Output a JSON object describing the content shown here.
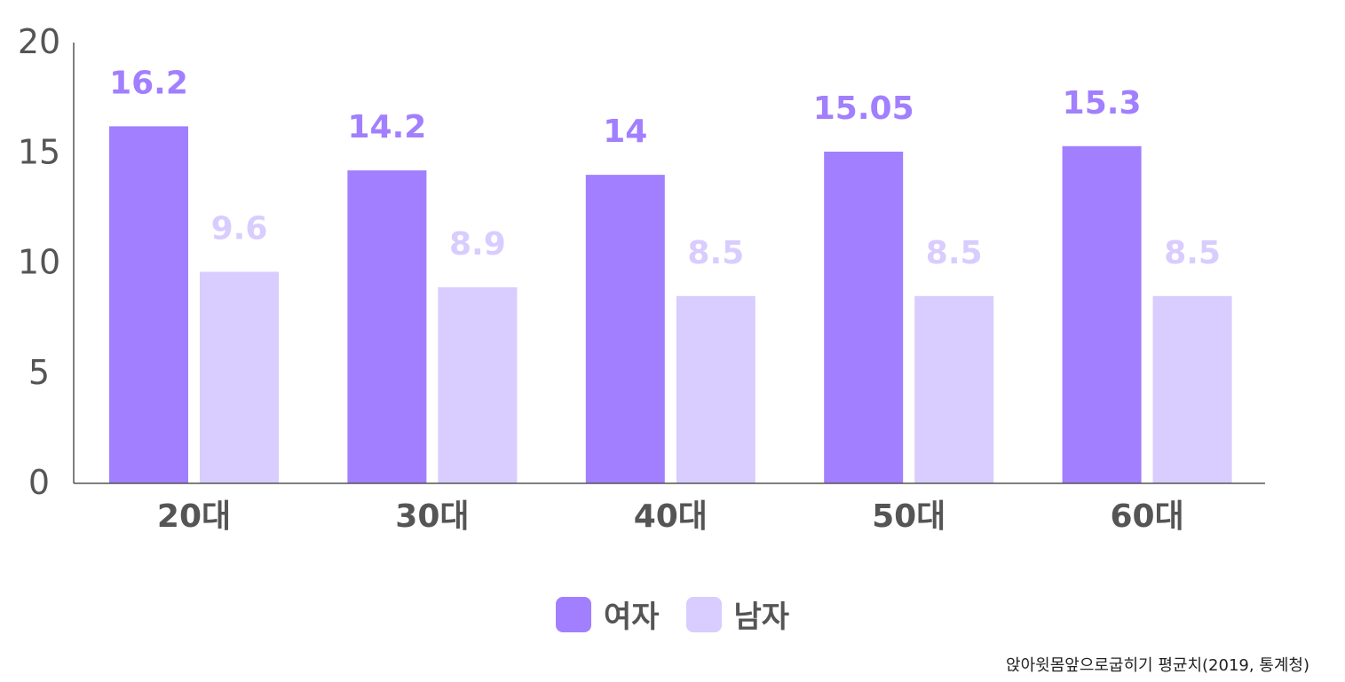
{
  "chart_data": {
    "type": "bar",
    "categories": [
      "20대",
      "30대",
      "40대",
      "50대",
      "60대"
    ],
    "series": [
      {
        "name": "여자",
        "values": [
          16.2,
          14.2,
          14,
          15.05,
          15.3
        ],
        "color": "#a17ffe",
        "label_color": "#a17ffe"
      },
      {
        "name": "남자",
        "values": [
          9.6,
          8.9,
          8.5,
          8.5,
          8.5
        ],
        "color": "#d8cdfe",
        "label_color": "#d8cdfe"
      }
    ],
    "ylim": [
      0,
      20
    ],
    "yticks": [
      0,
      5,
      10,
      15,
      20
    ],
    "legend_position": "bottom-center",
    "grid": false,
    "source": "앉아윗몸앞으로굽히기 평균치(2019, 통계청)"
  }
}
